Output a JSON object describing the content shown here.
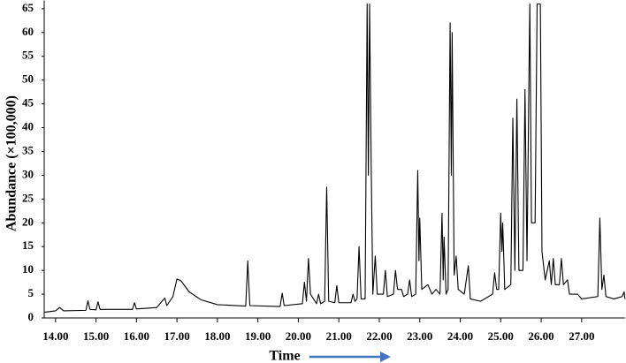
{
  "chart_data": {
    "type": "line",
    "y_label": "Abundance (×100,000)",
    "x_label": "Time",
    "color": "#000000",
    "grid": false,
    "xlim": [
      13.72,
      28.07
    ],
    "ylim": [
      0,
      66
    ],
    "yticks": [
      0,
      5,
      10,
      15,
      20,
      25,
      30,
      35,
      40,
      45,
      50,
      55,
      60,
      65
    ],
    "xticks": [
      {
        "value": 14,
        "label": "14.00"
      },
      {
        "value": 15,
        "label": "15.00"
      },
      {
        "value": 16,
        "label": "16.00"
      },
      {
        "value": 17,
        "label": "17.00"
      },
      {
        "value": 18,
        "label": "18.00"
      },
      {
        "value": 19,
        "label": "19.00"
      },
      {
        "value": 20,
        "label": "20.00"
      },
      {
        "value": 21,
        "label": "21.00"
      },
      {
        "value": 22,
        "label": "22.00"
      },
      {
        "value": 23,
        "label": "23.00"
      },
      {
        "value": 24,
        "label": "24.00"
      },
      {
        "value": 25,
        "label": "25.00"
      },
      {
        "value": 26,
        "label": "26.00"
      },
      {
        "value": 27,
        "label": "27.00"
      }
    ],
    "x": [
      13.72,
      14.0,
      14.1,
      14.2,
      14.75,
      14.8,
      14.85,
      15.0,
      15.05,
      15.1,
      15.9,
      15.95,
      16.0,
      16.5,
      16.7,
      16.75,
      16.9,
      17.0,
      17.1,
      17.3,
      17.6,
      18.0,
      18.7,
      18.75,
      18.8,
      19.55,
      19.6,
      19.65,
      20.1,
      20.15,
      20.2,
      20.25,
      20.3,
      20.45,
      20.5,
      20.55,
      20.65,
      20.7,
      20.75,
      20.9,
      20.95,
      21.0,
      21.3,
      21.35,
      21.4,
      21.45,
      21.5,
      21.55,
      21.65,
      21.7,
      21.73,
      21.76,
      21.8,
      21.84,
      21.9,
      21.95,
      22.1,
      22.15,
      22.2,
      22.35,
      22.4,
      22.45,
      22.55,
      22.6,
      22.7,
      22.75,
      22.8,
      22.9,
      22.95,
      22.98,
      23.0,
      23.05,
      23.2,
      23.3,
      23.4,
      23.5,
      23.55,
      23.58,
      23.6,
      23.65,
      23.7,
      23.75,
      23.78,
      23.8,
      23.85,
      23.9,
      23.95,
      24.1,
      24.2,
      24.25,
      24.5,
      24.8,
      24.85,
      24.9,
      24.95,
      25.0,
      25.03,
      25.05,
      25.1,
      25.25,
      25.3,
      25.35,
      25.4,
      25.45,
      25.55,
      25.6,
      25.65,
      25.7,
      25.72,
      25.76,
      25.85,
      25.9,
      25.98,
      26.02,
      26.1,
      26.2,
      26.25,
      26.3,
      26.35,
      26.45,
      26.5,
      26.55,
      26.65,
      26.7,
      26.9,
      27.0,
      27.4,
      27.45,
      27.5,
      27.55,
      27.6,
      27.8,
      28.0,
      28.05,
      28.07
    ],
    "values": [
      1.2,
      1.5,
      2.2,
      1.5,
      1.6,
      3.6,
      1.8,
      1.7,
      3.4,
      1.8,
      1.8,
      3.2,
      1.9,
      2.2,
      4.2,
      2.6,
      4.5,
      8.2,
      7.8,
      5.5,
      3.8,
      2.8,
      2.5,
      12,
      2.6,
      2.4,
      5.2,
      2.6,
      3,
      7.5,
      3.5,
      12.5,
      5,
      3,
      5,
      3,
      3.5,
      27.5,
      3.5,
      3.2,
      6.8,
      3.2,
      3.2,
      5,
      3.5,
      4,
      15,
      4,
      4,
      66,
      30,
      66,
      32,
      5,
      13,
      5,
      5,
      10,
      4.5,
      5,
      10,
      6,
      6,
      4.5,
      5,
      8,
      4.5,
      5,
      31,
      12,
      21,
      6,
      7,
      5,
      6,
      5,
      22,
      8,
      17,
      5,
      6,
      62,
      30,
      60,
      9,
      13,
      6,
      5,
      11,
      4,
      3.5,
      5,
      9.5,
      6,
      6,
      22,
      14,
      20,
      6,
      7,
      42,
      10,
      46,
      10,
      10,
      48,
      12,
      52,
      66,
      20,
      20,
      66,
      66,
      14,
      8,
      12,
      7,
      12.5,
      7,
      7,
      12.5,
      7,
      8,
      5,
      5,
      4,
      4.5,
      21,
      6,
      9,
      4.5,
      4,
      4.5,
      5.5,
      4
    ]
  }
}
